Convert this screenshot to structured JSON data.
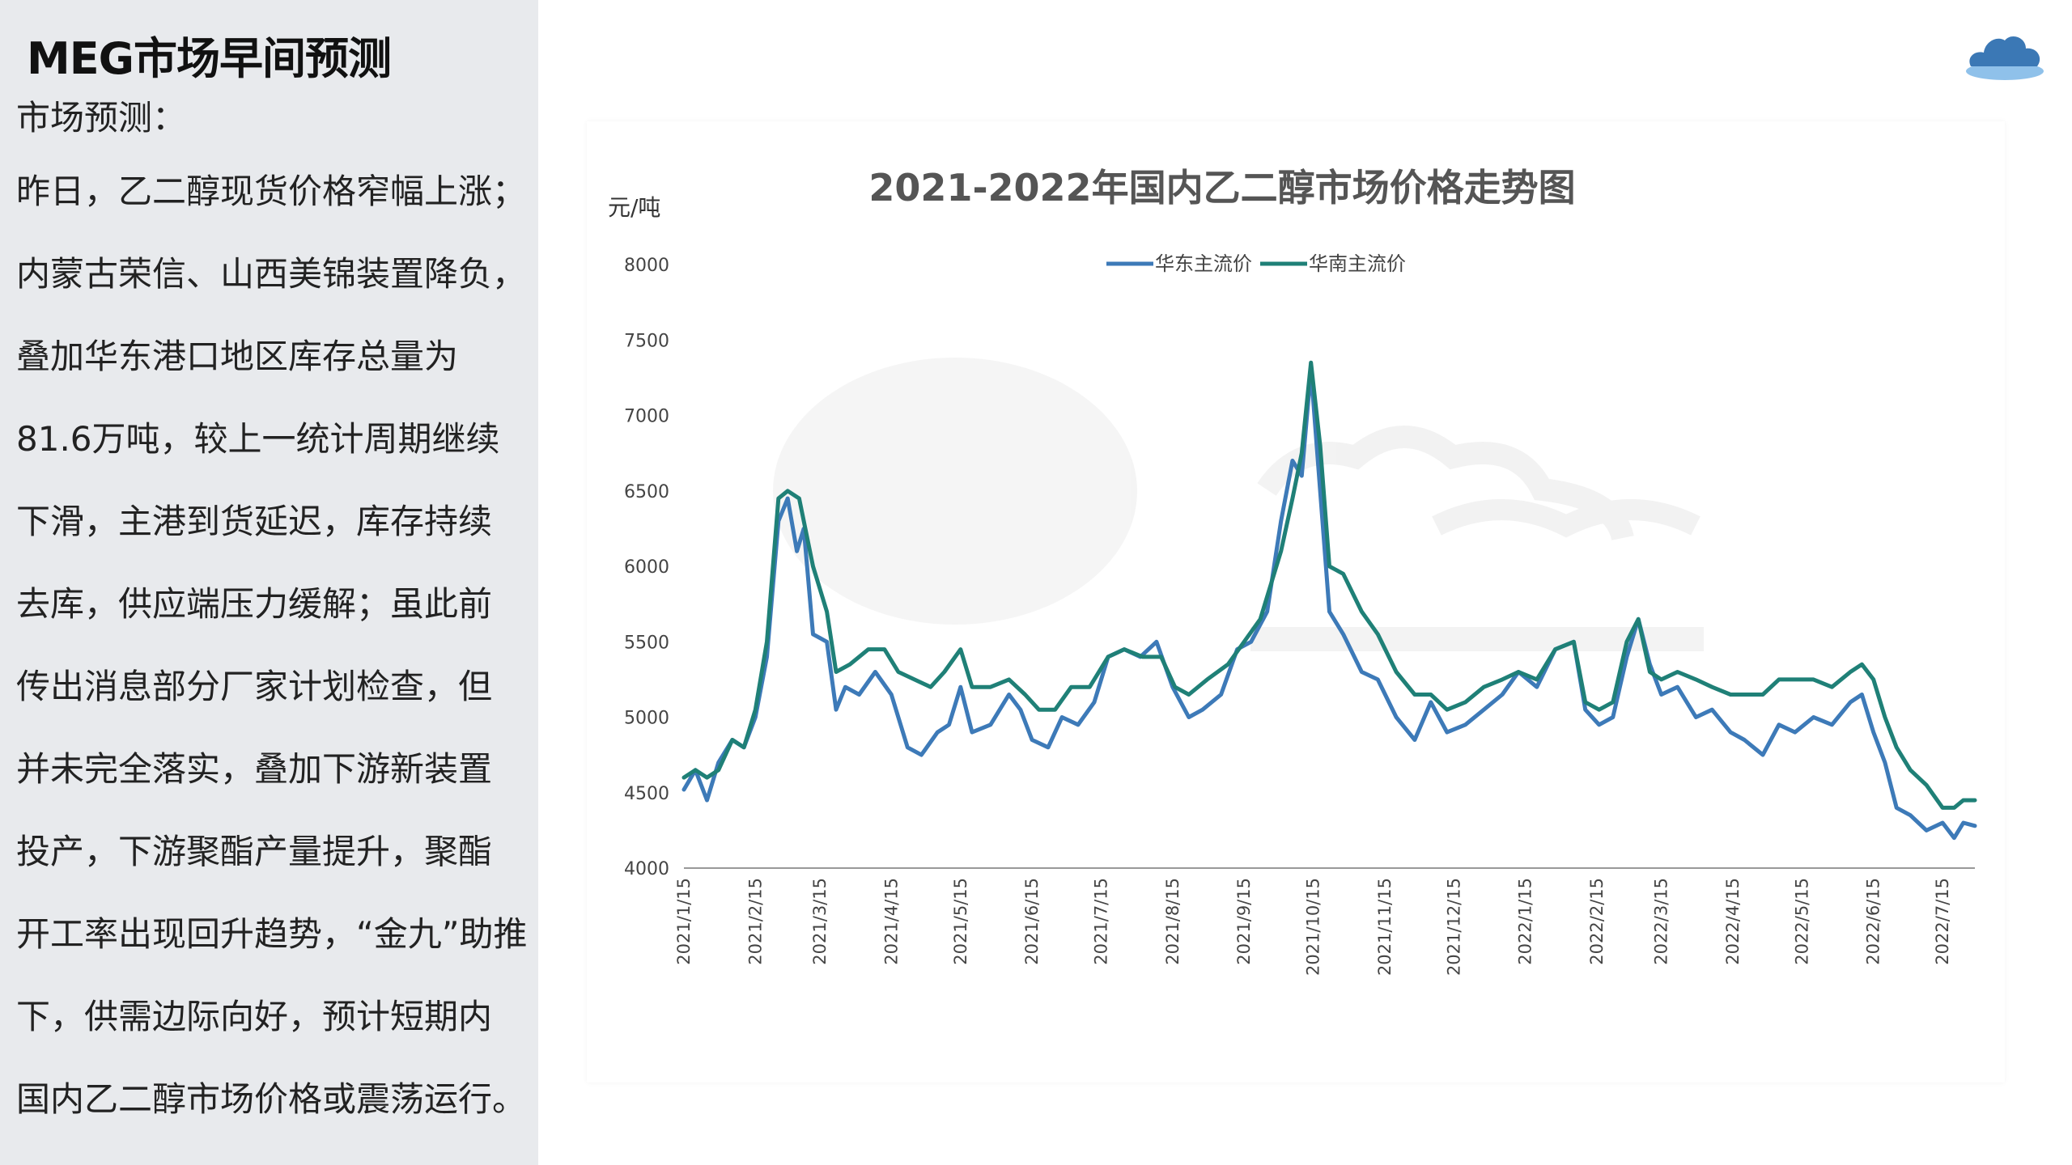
{
  "slide": {
    "title": "MEG市场早间预测",
    "heading": "市场预测：",
    "lines": [
      "昨日，乙二醇现货价格窄幅上涨；",
      "内蒙古荣信、山西美锦装置降负，",
      "叠加华东港口地区库存总量为",
      "81.6万吨，较上一统计周期继续",
      "下滑，主港到货延迟，库存持续",
      "去库，供应端压力缓解；虽此前",
      "传出消息部分厂家计划检查，但",
      "并未完全落实，叠加下游新装置",
      "投产，下游聚酯产量提升，聚酯",
      "开工率出现回升趋势，“金九”助推",
      "下，供需边际向好，预计短期内",
      "国内乙二醇市场价格或震荡运行。"
    ]
  },
  "colors": {
    "panel_bg": "#e8eaed",
    "series1": "#3d7ab8",
    "series2": "#1f8077",
    "axis_text": "#444444",
    "title_text": "#555555"
  },
  "icons": {
    "logo": "cloud-logo-icon"
  },
  "chart_data": {
    "type": "line",
    "title": "2021-2022年国内乙二醇市场价格走势图",
    "ylabel": "元/吨",
    "xlabel": "",
    "ylim": [
      4000,
      8000
    ],
    "yticks": [
      4000,
      4500,
      5000,
      5500,
      6000,
      6500,
      7000,
      7500,
      8000
    ],
    "xlim": [
      "2021-01-15",
      "2022-07-29"
    ],
    "xticks": [
      "2021/1/15",
      "2021/2/15",
      "2021/3/15",
      "2021/4/15",
      "2021/5/15",
      "2021/6/15",
      "2021/7/15",
      "2021/8/15",
      "2021/9/15",
      "2021/10/15",
      "2021/11/15",
      "2021/12/15",
      "2022/1/15",
      "2022/2/15",
      "2022/3/15",
      "2022/4/15",
      "2022/5/15",
      "2022/6/15",
      "2022/7/15"
    ],
    "grid": false,
    "legend_position": "top-center",
    "series": [
      {
        "name": "华东主流价",
        "points": [
          [
            "2021-01-15",
            4520
          ],
          [
            "2021-01-20",
            4650
          ],
          [
            "2021-01-25",
            4450
          ],
          [
            "2021-01-30",
            4700
          ],
          [
            "2021-02-05",
            4850
          ],
          [
            "2021-02-10",
            4800
          ],
          [
            "2021-02-15",
            5000
          ],
          [
            "2021-02-20",
            5400
          ],
          [
            "2021-02-25",
            6300
          ],
          [
            "2021-03-01",
            6450
          ],
          [
            "2021-03-05",
            6100
          ],
          [
            "2021-03-08",
            6250
          ],
          [
            "2021-03-12",
            5550
          ],
          [
            "2021-03-18",
            5500
          ],
          [
            "2021-03-22",
            5050
          ],
          [
            "2021-03-26",
            5200
          ],
          [
            "2021-04-01",
            5150
          ],
          [
            "2021-04-08",
            5300
          ],
          [
            "2021-04-15",
            5150
          ],
          [
            "2021-04-22",
            4800
          ],
          [
            "2021-04-28",
            4750
          ],
          [
            "2021-05-05",
            4900
          ],
          [
            "2021-05-10",
            4950
          ],
          [
            "2021-05-15",
            5200
          ],
          [
            "2021-05-20",
            4900
          ],
          [
            "2021-05-28",
            4950
          ],
          [
            "2021-06-05",
            5150
          ],
          [
            "2021-06-10",
            5050
          ],
          [
            "2021-06-15",
            4850
          ],
          [
            "2021-06-22",
            4800
          ],
          [
            "2021-06-28",
            5000
          ],
          [
            "2021-07-05",
            4950
          ],
          [
            "2021-07-12",
            5100
          ],
          [
            "2021-07-18",
            5400
          ],
          [
            "2021-07-25",
            5450
          ],
          [
            "2021-08-01",
            5400
          ],
          [
            "2021-08-08",
            5500
          ],
          [
            "2021-08-15",
            5200
          ],
          [
            "2021-08-22",
            5000
          ],
          [
            "2021-08-28",
            5050
          ],
          [
            "2021-09-05",
            5150
          ],
          [
            "2021-09-12",
            5450
          ],
          [
            "2021-09-18",
            5500
          ],
          [
            "2021-09-25",
            5700
          ],
          [
            "2021-10-01",
            6300
          ],
          [
            "2021-10-06",
            6700
          ],
          [
            "2021-10-10",
            6600
          ],
          [
            "2021-10-14",
            7300
          ],
          [
            "2021-10-18",
            6500
          ],
          [
            "2021-10-22",
            5700
          ],
          [
            "2021-10-28",
            5550
          ],
          [
            "2021-11-05",
            5300
          ],
          [
            "2021-11-12",
            5250
          ],
          [
            "2021-11-20",
            5000
          ],
          [
            "2021-11-28",
            4850
          ],
          [
            "2021-12-05",
            5100
          ],
          [
            "2021-12-12",
            4900
          ],
          [
            "2021-12-20",
            4950
          ],
          [
            "2021-12-28",
            5050
          ],
          [
            "2022-01-05",
            5150
          ],
          [
            "2022-01-12",
            5300
          ],
          [
            "2022-01-20",
            5200
          ],
          [
            "2022-01-28",
            5450
          ],
          [
            "2022-02-05",
            5500
          ],
          [
            "2022-02-10",
            5050
          ],
          [
            "2022-02-16",
            4950
          ],
          [
            "2022-02-22",
            5000
          ],
          [
            "2022-02-28",
            5400
          ],
          [
            "2022-03-05",
            5650
          ],
          [
            "2022-03-10",
            5350
          ],
          [
            "2022-03-15",
            5150
          ],
          [
            "2022-03-22",
            5200
          ],
          [
            "2022-03-30",
            5000
          ],
          [
            "2022-04-06",
            5050
          ],
          [
            "2022-04-14",
            4900
          ],
          [
            "2022-04-20",
            4850
          ],
          [
            "2022-04-28",
            4750
          ],
          [
            "2022-05-05",
            4950
          ],
          [
            "2022-05-12",
            4900
          ],
          [
            "2022-05-20",
            5000
          ],
          [
            "2022-05-28",
            4950
          ],
          [
            "2022-06-05",
            5100
          ],
          [
            "2022-06-10",
            5150
          ],
          [
            "2022-06-15",
            4900
          ],
          [
            "2022-06-20",
            4700
          ],
          [
            "2022-06-25",
            4400
          ],
          [
            "2022-07-01",
            4350
          ],
          [
            "2022-07-08",
            4250
          ],
          [
            "2022-07-15",
            4300
          ],
          [
            "2022-07-20",
            4200
          ],
          [
            "2022-07-24",
            4300
          ],
          [
            "2022-07-29",
            4280
          ]
        ]
      },
      {
        "name": "华南主流价",
        "points": [
          [
            "2021-01-15",
            4600
          ],
          [
            "2021-01-20",
            4650
          ],
          [
            "2021-01-25",
            4600
          ],
          [
            "2021-01-30",
            4650
          ],
          [
            "2021-02-05",
            4850
          ],
          [
            "2021-02-10",
            4800
          ],
          [
            "2021-02-15",
            5050
          ],
          [
            "2021-02-20",
            5500
          ],
          [
            "2021-02-25",
            6450
          ],
          [
            "2021-03-01",
            6500
          ],
          [
            "2021-03-06",
            6450
          ],
          [
            "2021-03-12",
            6000
          ],
          [
            "2021-03-18",
            5700
          ],
          [
            "2021-03-22",
            5300
          ],
          [
            "2021-03-28",
            5350
          ],
          [
            "2021-04-05",
            5450
          ],
          [
            "2021-04-12",
            5450
          ],
          [
            "2021-04-18",
            5300
          ],
          [
            "2021-04-25",
            5250
          ],
          [
            "2021-05-02",
            5200
          ],
          [
            "2021-05-08",
            5300
          ],
          [
            "2021-05-15",
            5450
          ],
          [
            "2021-05-20",
            5200
          ],
          [
            "2021-05-28",
            5200
          ],
          [
            "2021-06-05",
            5250
          ],
          [
            "2021-06-12",
            5150
          ],
          [
            "2021-06-18",
            5050
          ],
          [
            "2021-06-25",
            5050
          ],
          [
            "2021-07-02",
            5200
          ],
          [
            "2021-07-10",
            5200
          ],
          [
            "2021-07-18",
            5400
          ],
          [
            "2021-07-25",
            5450
          ],
          [
            "2021-08-02",
            5400
          ],
          [
            "2021-08-10",
            5400
          ],
          [
            "2021-08-16",
            5200
          ],
          [
            "2021-08-22",
            5150
          ],
          [
            "2021-08-30",
            5250
          ],
          [
            "2021-09-08",
            5350
          ],
          [
            "2021-09-15",
            5500
          ],
          [
            "2021-09-22",
            5650
          ],
          [
            "2021-10-01",
            6100
          ],
          [
            "2021-10-06",
            6450
          ],
          [
            "2021-10-10",
            6750
          ],
          [
            "2021-10-14",
            7350
          ],
          [
            "2021-10-18",
            6800
          ],
          [
            "2021-10-22",
            6000
          ],
          [
            "2021-10-28",
            5950
          ],
          [
            "2021-11-05",
            5700
          ],
          [
            "2021-11-12",
            5550
          ],
          [
            "2021-11-20",
            5300
          ],
          [
            "2021-11-28",
            5150
          ],
          [
            "2021-12-05",
            5150
          ],
          [
            "2021-12-12",
            5050
          ],
          [
            "2021-12-20",
            5100
          ],
          [
            "2021-12-28",
            5200
          ],
          [
            "2022-01-05",
            5250
          ],
          [
            "2022-01-12",
            5300
          ],
          [
            "2022-01-20",
            5250
          ],
          [
            "2022-01-28",
            5450
          ],
          [
            "2022-02-05",
            5500
          ],
          [
            "2022-02-10",
            5100
          ],
          [
            "2022-02-16",
            5050
          ],
          [
            "2022-02-22",
            5100
          ],
          [
            "2022-02-28",
            5500
          ],
          [
            "2022-03-05",
            5650
          ],
          [
            "2022-03-10",
            5300
          ],
          [
            "2022-03-15",
            5250
          ],
          [
            "2022-03-22",
            5300
          ],
          [
            "2022-03-30",
            5250
          ],
          [
            "2022-04-06",
            5200
          ],
          [
            "2022-04-14",
            5150
          ],
          [
            "2022-04-20",
            5150
          ],
          [
            "2022-04-28",
            5150
          ],
          [
            "2022-05-05",
            5250
          ],
          [
            "2022-05-12",
            5250
          ],
          [
            "2022-05-20",
            5250
          ],
          [
            "2022-05-28",
            5200
          ],
          [
            "2022-06-05",
            5300
          ],
          [
            "2022-06-10",
            5350
          ],
          [
            "2022-06-15",
            5250
          ],
          [
            "2022-06-20",
            5000
          ],
          [
            "2022-06-25",
            4800
          ],
          [
            "2022-07-01",
            4650
          ],
          [
            "2022-07-08",
            4550
          ],
          [
            "2022-07-15",
            4400
          ],
          [
            "2022-07-20",
            4400
          ],
          [
            "2022-07-24",
            4450
          ],
          [
            "2022-07-29",
            4450
          ]
        ]
      }
    ]
  }
}
